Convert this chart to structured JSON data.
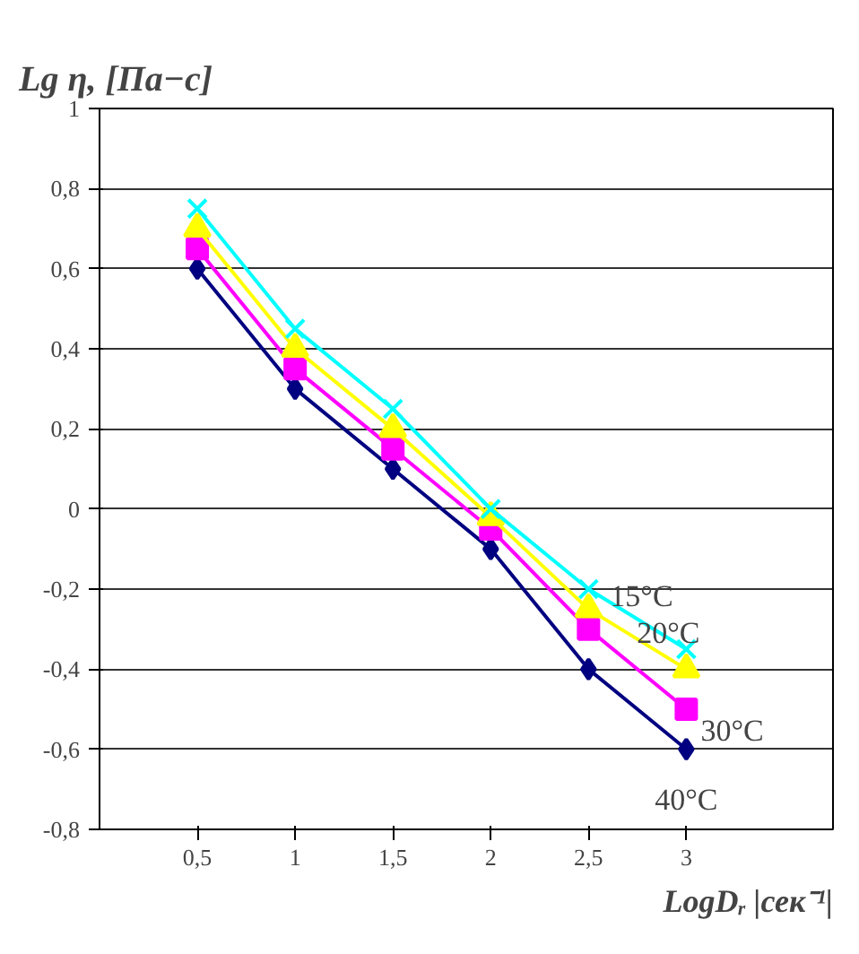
{
  "chart_data": {
    "type": "line",
    "xlabel": "LogDᵣ |сек⁻¹|",
    "ylabel": "Lg η, [Па−с]",
    "categories": [
      "0,5",
      "1",
      "1,5",
      "2",
      "2,5",
      "3"
    ],
    "series": [
      {
        "name": "40°C",
        "color": "#000080",
        "marker": "diamond",
        "values": [
          0.6,
          0.3,
          0.1,
          -0.1,
          -0.4,
          -0.6
        ]
      },
      {
        "name": "30°C",
        "color": "#ff00ff",
        "marker": "square",
        "values": [
          0.65,
          0.35,
          0.15,
          -0.05,
          -0.3,
          -0.5
        ]
      },
      {
        "name": "20°C",
        "color": "#ffff00",
        "marker": "triangle",
        "values": [
          0.7,
          0.4,
          0.2,
          -0.02,
          -0.25,
          -0.4
        ]
      },
      {
        "name": "15°C",
        "color": "#00ffff",
        "marker": "cross",
        "values": [
          0.75,
          0.45,
          0.25,
          0,
          -0.2,
          -0.35
        ]
      }
    ],
    "ylim": [
      -0.8,
      1
    ],
    "yticks": [
      {
        "value": -0.8,
        "label": "-0,8"
      },
      {
        "value": -0.6,
        "label": "-0,6"
      },
      {
        "value": -0.4,
        "label": "-0,4"
      },
      {
        "value": -0.2,
        "label": "-0,2"
      },
      0,
      {
        "value": 0.2,
        "label": "0,2"
      },
      {
        "value": 0.4,
        "label": "0,4"
      },
      {
        "value": 0.6,
        "label": "0,6"
      },
      {
        "value": 0.8,
        "label": "0,8"
      },
      1
    ],
    "grid": "y",
    "line_style": "solid"
  }
}
